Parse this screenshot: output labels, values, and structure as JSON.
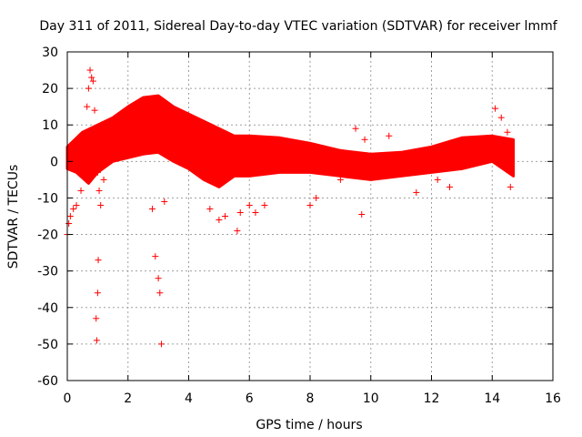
{
  "chart_data": {
    "type": "scatter",
    "title": "Day 311 of 2011, Sidereal Day-to-day VTEC variation (SDTVAR) for receiver lmmf",
    "xlabel": "GPS time / hours",
    "ylabel": "SDTVAR / TECUs",
    "xlim": [
      0,
      16
    ],
    "ylim": [
      -60,
      30
    ],
    "x_ticks": [
      0,
      2,
      4,
      6,
      8,
      10,
      12,
      14,
      16
    ],
    "y_ticks": [
      -60,
      -50,
      -40,
      -30,
      -20,
      -10,
      0,
      10,
      20,
      30
    ],
    "x_tick_labels": [
      "0",
      "2",
      "4",
      "6",
      "8",
      "10",
      "12",
      "14",
      "16"
    ],
    "y_tick_labels": [
      "-60",
      "-50",
      "-40",
      "-30",
      "-20",
      "-10",
      "0",
      "10",
      "20",
      "30"
    ],
    "grid": true,
    "marker": "+",
    "color": "#ff0000",
    "series": [
      {
        "name": "band upper edge",
        "x": [
          0,
          0.5,
          1.0,
          1.5,
          2.0,
          2.5,
          3.0,
          3.5,
          4.0,
          4.5,
          5.0,
          5.5,
          6.0,
          7.0,
          8.0,
          9.0,
          10.0,
          11.0,
          12.0,
          13.0,
          14.0,
          14.7
        ],
        "y": [
          4,
          8,
          10,
          12,
          15,
          17.5,
          18,
          15,
          13,
          11,
          9,
          7,
          7,
          6.5,
          5,
          3,
          2,
          2.5,
          4,
          6.5,
          7,
          6
        ]
      },
      {
        "name": "band lower edge",
        "x": [
          0,
          0.3,
          0.7,
          1.0,
          1.5,
          2.0,
          2.5,
          3.0,
          3.5,
          4.0,
          4.5,
          5.0,
          5.5,
          6.0,
          7.0,
          8.0,
          9.0,
          10.0,
          11.0,
          12.0,
          13.0,
          14.0,
          14.7
        ],
        "y": [
          -2,
          -3,
          -6,
          -3,
          0,
          1,
          2,
          2.5,
          0,
          -2,
          -5,
          -7,
          -4,
          -4,
          -3,
          -3,
          -4,
          -5,
          -4,
          -3,
          -2,
          0,
          -4
        ]
      },
      {
        "name": "scatter points",
        "x": [
          0.0,
          0.05,
          0.1,
          0.2,
          0.3,
          0.45,
          0.55,
          0.65,
          0.7,
          0.75,
          0.8,
          0.85,
          0.9,
          0.95,
          1.0,
          1.05,
          0.95,
          0.97,
          1.0,
          1.02,
          1.1,
          1.2,
          2.6,
          2.8,
          2.9,
          3.0,
          3.05,
          3.1,
          3.2,
          4.7,
          5.0,
          5.2,
          5.6,
          5.7,
          6.0,
          6.2,
          6.5,
          8.0,
          8.2,
          9.0,
          9.5,
          9.7,
          9.8,
          10.6,
          11.5,
          12.2,
          12.6,
          14.1,
          14.3,
          14.5,
          14.6
        ],
        "y": [
          -20,
          -17,
          -15,
          -13,
          -12,
          -8,
          5,
          15,
          20,
          25,
          23,
          22,
          14,
          5,
          -3,
          -8,
          -43,
          -49,
          -36,
          -27,
          -12,
          -5,
          5,
          -13,
          -26,
          -32,
          -36,
          -50,
          -11,
          -13,
          -16,
          -15,
          -19,
          -14,
          -12,
          -14,
          -12,
          -12,
          -10,
          -5,
          9,
          -14.5,
          6,
          7,
          -8.5,
          -5,
          -7,
          14.5,
          12,
          8,
          -7
        ]
      }
    ]
  }
}
